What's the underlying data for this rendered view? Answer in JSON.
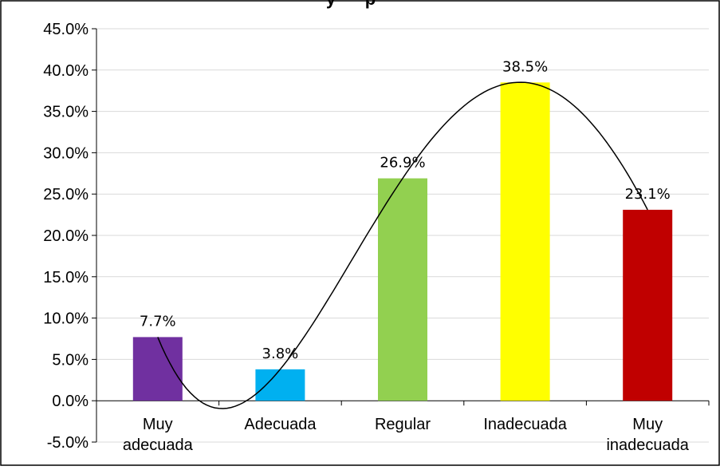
{
  "chart_data": {
    "type": "bar",
    "title_fragment": "y      p",
    "categories": [
      [
        "Muy",
        "adecuada"
      ],
      [
        "Adecuada"
      ],
      [
        "Regular"
      ],
      [
        "Inadecuada"
      ],
      [
        "Muy",
        "inadecuada"
      ]
    ],
    "values": [
      7.7,
      3.8,
      26.9,
      38.5,
      23.1
    ],
    "data_labels": [
      "7.7%",
      "3.8%",
      "26.9%",
      "38.5%",
      "23.1%"
    ],
    "bar_colors": [
      "#7030a0",
      "#00b0f0",
      "#92d050",
      "#ffff00",
      "#c00000"
    ],
    "ylim": [
      -5,
      45
    ],
    "yticks": [
      -5,
      0,
      5,
      10,
      15,
      20,
      25,
      30,
      35,
      40,
      45
    ],
    "ytick_labels": [
      "-5.0%",
      "0.0%",
      "5.0%",
      "10.0%",
      "15.0%",
      "20.0%",
      "25.0%",
      "30.0%",
      "35.0%",
      "40.0%",
      "45.0%"
    ],
    "trendline": "polynomial",
    "grid": true,
    "colors": {
      "grid": "#d9d9d9",
      "axis": "#000000",
      "trendline": "#000000",
      "border": "#000000"
    }
  }
}
